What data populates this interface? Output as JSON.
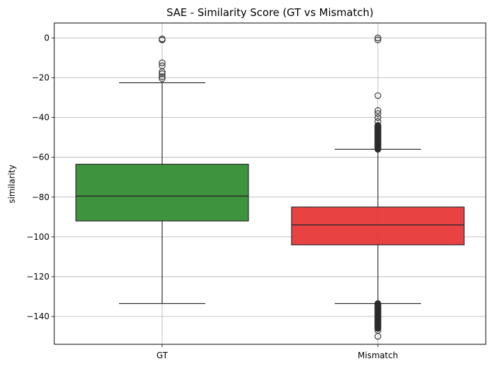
{
  "chart_data": {
    "type": "box",
    "title": "SAE - Similarity Score (GT vs Mismatch)",
    "xlabel": "",
    "ylabel": "similarity",
    "categories": [
      "GT",
      "Mismatch"
    ],
    "yticks": [
      "0",
      "−20",
      "−40",
      "−60",
      "−80",
      "−100",
      "−120",
      "−140"
    ],
    "ylim": [
      -154,
      7.5
    ],
    "grid": true,
    "boxes": [
      {
        "category": "GT",
        "color": "#2e8b2e",
        "whisker_high": -22.5,
        "q3": -63.5,
        "median": -79.5,
        "q1": -92,
        "whisker_low": -133.5,
        "outliers": [
          -0.5,
          -1,
          -12.5,
          -14,
          -17,
          -18,
          -19.5,
          -20.5
        ],
        "outlier_range_high": null,
        "outlier_range_low": null
      },
      {
        "category": "Mismatch",
        "color": "#e63232",
        "whisker_high": -56,
        "q3": -85,
        "median": -94,
        "q1": -104,
        "whisker_low": -133.5,
        "outliers": [
          0,
          -1,
          -29,
          -36.5,
          -38,
          -40,
          -42,
          -44,
          -146,
          -147,
          -150
        ],
        "outlier_range_high": [
          -44,
          -56
        ],
        "outlier_range_low": [
          -133.5,
          -146
        ]
      }
    ]
  }
}
